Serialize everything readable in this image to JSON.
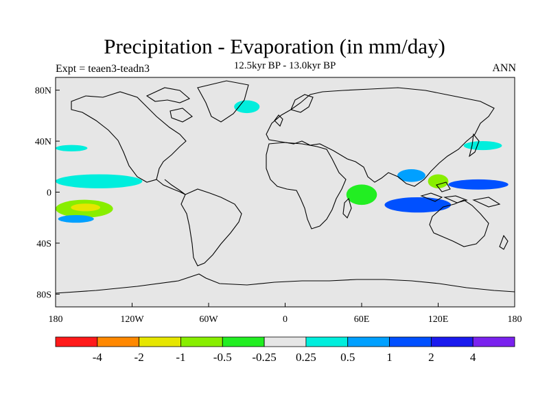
{
  "title": "Precipitation - Evaporation (in mm/day)",
  "subtitle": "12.5kyr BP - 13.0kyr BP",
  "left_string": "Expt = teaen3-teadn3",
  "right_string": "ANN",
  "colors": {
    "background_land_ocean": "#e6e6e6",
    "coast": "#000000",
    "dry_strong": "#ff1a1a",
    "dry": "#ff8800",
    "dry_mid": "#e6e600",
    "dry_low": "#88ee00",
    "dry_faint": "#22ee22",
    "neutral": "#e6e6e6",
    "wet_faint": "#00eedd",
    "wet_low": "#00a0ff",
    "wet_mid": "#0050ff",
    "wet": "#1a1aee",
    "wet_strong": "#7a22ee"
  },
  "chart_data": {
    "type": "heatmap",
    "projection": "cylindrical equidistant",
    "x_range": [
      -180,
      180
    ],
    "y_range": [
      -90,
      90
    ],
    "x_ticks": [
      {
        "value": -180,
        "label": "180"
      },
      {
        "value": -120,
        "label": "120W"
      },
      {
        "value": -60,
        "label": "60W"
      },
      {
        "value": 0,
        "label": "0"
      },
      {
        "value": 60,
        "label": "60E"
      },
      {
        "value": 120,
        "label": "120E"
      },
      {
        "value": 180,
        "label": "180"
      }
    ],
    "y_ticks": [
      {
        "value": 80,
        "label": "80N"
      },
      {
        "value": 40,
        "label": "40N"
      },
      {
        "value": 0,
        "label": "0"
      },
      {
        "value": -40,
        "label": "40S"
      },
      {
        "value": -80,
        "label": "80S"
      }
    ],
    "colorbar": {
      "levels": [
        -4,
        -2,
        -1,
        -0.5,
        -0.25,
        0.25,
        0.5,
        1,
        2,
        4
      ],
      "labels": [
        "-4",
        "-2",
        "-1",
        "-0.5",
        "-0.25",
        "0.25",
        "0.5",
        "1",
        "2",
        "4"
      ],
      "colors": [
        "#ff1a1a",
        "#ff8800",
        "#e6e600",
        "#88ee00",
        "#22ee22",
        "#e6e6e6",
        "#00eedd",
        "#00a0ff",
        "#0050ff",
        "#1a1aee",
        "#7a22ee"
      ]
    },
    "regions": [
      {
        "name": "central-pacific-wet-band",
        "bin": 8,
        "lon": [
          -180,
          -118
        ],
        "lat": [
          6,
          12
        ]
      },
      {
        "name": "central-pacific-wet-band-core",
        "bin": 9,
        "lon": [
          -178,
          -140
        ],
        "lat": [
          7,
          10
        ]
      },
      {
        "name": "pacific-itcz-edge",
        "bin": 6,
        "lon": [
          -180,
          -112
        ],
        "lat": [
          3,
          14
        ]
      },
      {
        "name": "south-pacific-dry-band",
        "bin": 3,
        "lon": [
          -180,
          -135
        ],
        "lat": [
          -20,
          -6
        ]
      },
      {
        "name": "south-pacific-dry-core",
        "bin": 2,
        "lon": [
          -168,
          -145
        ],
        "lat": [
          -15,
          -9
        ]
      },
      {
        "name": "south-pacific-wet-edge",
        "bin": 7,
        "lon": [
          -178,
          -150
        ],
        "lat": [
          -24,
          -18
        ]
      },
      {
        "name": "north-pacific-wet-patch",
        "bin": 6,
        "lon": [
          -180,
          -155
        ],
        "lat": [
          32,
          37
        ]
      },
      {
        "name": "north-atlantic-wet-patch",
        "bin": 6,
        "lon": [
          -40,
          -20
        ],
        "lat": [
          62,
          72
        ]
      },
      {
        "name": "east-africa-indian-dry",
        "bin": 4,
        "lon": [
          48,
          72
        ],
        "lat": [
          -10,
          6
        ]
      },
      {
        "name": "indian-ocean-wet",
        "bin": 8,
        "lon": [
          78,
          130
        ],
        "lat": [
          -16,
          -4
        ]
      },
      {
        "name": "maritime-continent-dry",
        "bin": 3,
        "lon": [
          112,
          128
        ],
        "lat": [
          3,
          14
        ]
      },
      {
        "name": "west-pacific-wet",
        "bin": 8,
        "lon": [
          128,
          175
        ],
        "lat": [
          2,
          10
        ]
      },
      {
        "name": "east-asia-wet",
        "bin": 6,
        "lon": [
          140,
          170
        ],
        "lat": [
          33,
          40
        ]
      },
      {
        "name": "south-asia-wet",
        "bin": 7,
        "lon": [
          88,
          110
        ],
        "lat": [
          8,
          18
        ]
      }
    ]
  }
}
